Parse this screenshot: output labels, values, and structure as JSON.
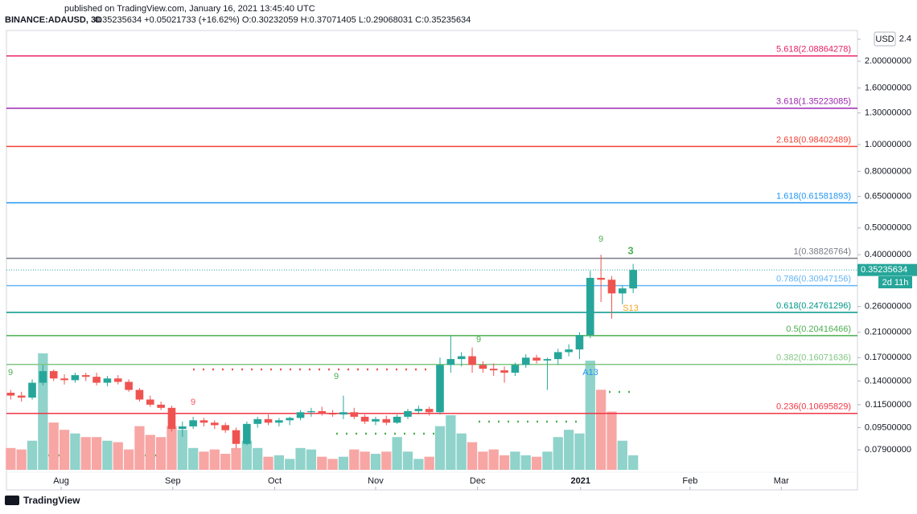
{
  "header": {
    "published": "published on TradingView.com, January 16, 2021 13:45:40 UTC",
    "symbol": "BINANCE:ADAUSD, 3D",
    "quote": "0.35235634 +0.05021733 (+16.62%) O:0.30232059 H:0.37071405 L:0.29068031 C:0.35235634",
    "currency": "USD",
    "countdown": "2d 11h",
    "brand": "TradingView"
  },
  "chart_data": {
    "type": "candlestick",
    "log_scale": true,
    "up_color": "#26a69a",
    "down_color": "#ef5350",
    "volume_up_color": "#8fd3cb",
    "volume_down_color": "#f7a6a4",
    "categories": [
      null,
      null,
      null,
      null,
      null,
      null,
      null,
      null,
      null,
      null,
      null,
      null,
      null,
      null,
      null,
      null,
      null,
      null,
      null,
      null,
      null,
      null,
      null,
      null,
      null,
      null,
      null,
      null,
      null,
      null,
      null,
      null,
      null,
      null,
      null,
      null,
      null,
      null,
      null,
      null,
      null,
      null,
      null,
      null,
      null,
      null,
      null,
      null,
      null,
      null,
      null,
      null,
      null,
      null,
      null,
      null,
      null,
      null,
      null
    ],
    "ohlc": [
      [
        0.127,
        0.13,
        0.12,
        0.124
      ],
      [
        0.124,
        0.128,
        0.118,
        0.122
      ],
      [
        0.122,
        0.142,
        0.12,
        0.138
      ],
      [
        0.138,
        0.16,
        0.135,
        0.152
      ],
      [
        0.152,
        0.154,
        0.14,
        0.143
      ],
      [
        0.143,
        0.148,
        0.136,
        0.141
      ],
      [
        0.141,
        0.15,
        0.138,
        0.147
      ],
      [
        0.147,
        0.15,
        0.14,
        0.145
      ],
      [
        0.145,
        0.15,
        0.135,
        0.138
      ],
      [
        0.138,
        0.146,
        0.134,
        0.143
      ],
      [
        0.143,
        0.147,
        0.136,
        0.139
      ],
      [
        0.139,
        0.142,
        0.128,
        0.13
      ],
      [
        0.13,
        0.132,
        0.118,
        0.12
      ],
      [
        0.12,
        0.124,
        0.113,
        0.115
      ],
      [
        0.115,
        0.118,
        0.11,
        0.112
      ],
      [
        0.112,
        0.114,
        0.092,
        0.094
      ],
      [
        0.094,
        0.1,
        0.088,
        0.096
      ],
      [
        0.096,
        0.104,
        0.094,
        0.101
      ],
      [
        0.101,
        0.103,
        0.096,
        0.099
      ],
      [
        0.099,
        0.101,
        0.094,
        0.097
      ],
      [
        0.097,
        0.099,
        0.091,
        0.093
      ],
      [
        0.093,
        0.095,
        0.08,
        0.083
      ],
      [
        0.083,
        0.1,
        0.082,
        0.098
      ],
      [
        0.098,
        0.104,
        0.095,
        0.102
      ],
      [
        0.102,
        0.106,
        0.097,
        0.099
      ],
      [
        0.099,
        0.103,
        0.096,
        0.101
      ],
      [
        0.101,
        0.104,
        0.097,
        0.103
      ],
      [
        0.103,
        0.11,
        0.101,
        0.108
      ],
      [
        0.108,
        0.112,
        0.104,
        0.109
      ],
      [
        0.109,
        0.113,
        0.105,
        0.107
      ],
      [
        0.107,
        0.11,
        0.104,
        0.106
      ],
      [
        0.106,
        0.124,
        0.102,
        0.108
      ],
      [
        0.108,
        0.112,
        0.102,
        0.104
      ],
      [
        0.104,
        0.106,
        0.098,
        0.1
      ],
      [
        0.1,
        0.104,
        0.097,
        0.102
      ],
      [
        0.102,
        0.105,
        0.097,
        0.099
      ],
      [
        0.099,
        0.106,
        0.098,
        0.104
      ],
      [
        0.104,
        0.111,
        0.102,
        0.109
      ],
      [
        0.109,
        0.114,
        0.106,
        0.111
      ],
      [
        0.111,
        0.113,
        0.105,
        0.108
      ],
      [
        0.108,
        0.17,
        0.106,
        0.16
      ],
      [
        0.16,
        0.205,
        0.15,
        0.168
      ],
      [
        0.168,
        0.178,
        0.158,
        0.172
      ],
      [
        0.172,
        0.185,
        0.15,
        0.16
      ],
      [
        0.16,
        0.165,
        0.15,
        0.155
      ],
      [
        0.155,
        0.162,
        0.146,
        0.153
      ],
      [
        0.153,
        0.158,
        0.138,
        0.15
      ],
      [
        0.15,
        0.163,
        0.146,
        0.16
      ],
      [
        0.16,
        0.175,
        0.156,
        0.17
      ],
      [
        0.17,
        0.174,
        0.162,
        0.166
      ],
      [
        0.166,
        0.17,
        0.13,
        0.168
      ],
      [
        0.168,
        0.183,
        0.16,
        0.178
      ],
      [
        0.178,
        0.19,
        0.172,
        0.182
      ],
      [
        0.182,
        0.21,
        0.168,
        0.205
      ],
      [
        0.205,
        0.35,
        0.2,
        0.33
      ],
      [
        0.33,
        0.4,
        0.27,
        0.325
      ],
      [
        0.325,
        0.335,
        0.235,
        0.29
      ],
      [
        0.29,
        0.31,
        0.265,
        0.30232059
      ],
      [
        0.30232059,
        0.37071405,
        0.29068031,
        0.35235634
      ]
    ],
    "volume": [
      30,
      28,
      40,
      160,
      65,
      55,
      50,
      45,
      45,
      40,
      38,
      28,
      60,
      48,
      45,
      60,
      55,
      30,
      25,
      28,
      22,
      30,
      40,
      30,
      18,
      20,
      15,
      30,
      28,
      18,
      15,
      18,
      28,
      25,
      22,
      25,
      45,
      25,
      15,
      18,
      60,
      75,
      50,
      38,
      25,
      28,
      20,
      25,
      20,
      18,
      25,
      45,
      55,
      50,
      150,
      110,
      80,
      40,
      20
    ],
    "xlim": [
      -0.4,
      78.9
    ],
    "xticks": [
      {
        "value": 4.7,
        "label": "Aug"
      },
      {
        "value": 15.1,
        "label": "Sep"
      },
      {
        "value": 24.6,
        "label": "Oct"
      },
      {
        "value": 34.0,
        "label": "Nov"
      },
      {
        "value": 43.5,
        "label": "Dec"
      },
      {
        "value": 53.1,
        "label": "2021"
      },
      {
        "value": 63.3,
        "label": "Feb"
      },
      {
        "value": 71.8,
        "label": "Mar"
      }
    ],
    "ylim": [
      0.0669,
      2.58
    ],
    "yticks": [
      2.4,
      {
        "value": 2,
        "label": "2.00000000"
      },
      {
        "value": 1.6,
        "label": "1.60000000"
      },
      {
        "value": 1.3,
        "label": "1.30000000"
      },
      {
        "value": 1,
        "label": "1.00000000"
      },
      {
        "value": 0.8,
        "label": "0.80000000"
      },
      {
        "value": 0.65,
        "label": "0.65000000"
      },
      {
        "value": 0.5,
        "label": "0.50000000"
      },
      {
        "value": 0.4,
        "label": "0.40000000"
      },
      {
        "value": 0.26,
        "label": "0.26000000"
      },
      {
        "value": 0.21,
        "label": "0.21000000"
      },
      {
        "value": 0.17,
        "label": "0.17000000"
      },
      {
        "value": 0.14,
        "label": "0.14000000"
      },
      {
        "value": 0.115,
        "label": "0.11500000"
      },
      {
        "value": 0.095,
        "label": "0.09500000"
      },
      {
        "value": 0.079,
        "label": "0.07900000"
      }
    ],
    "levels": [
      {
        "label": "5.618(2.08864278)",
        "value": 2.08864278,
        "color": "#e91e63"
      },
      {
        "label": "3.618(1.35223085)",
        "value": 1.35223085,
        "color": "#9c27b0"
      },
      {
        "label": "2.618(0.98402489)",
        "value": 0.98402489,
        "color": "#f44336"
      },
      {
        "label": "1.618(0.61581893)",
        "value": 0.61581893,
        "color": "#2196f3"
      },
      {
        "label": "1(0.38826764)",
        "value": 0.38826764,
        "color": "#787b86"
      },
      {
        "label": "0.786(0.30947156)",
        "value": 0.30947156,
        "color": "#64b5f6"
      },
      {
        "label": "0.618(0.24761296)",
        "value": 0.24761296,
        "color": "#009688"
      },
      {
        "label": "0.5(0.20416466)",
        "value": 0.20416466,
        "color": "#4caf50"
      },
      {
        "label": "0.382(0.16071636)",
        "value": 0.16071636,
        "color": "#81c784"
      },
      {
        "label": "0.236(0.10695829)",
        "value": 0.10695829,
        "color": "#f23645"
      }
    ],
    "annotations": [
      "9",
      "9",
      "9",
      "9",
      "9",
      "3",
      "A13",
      "S13"
    ]
  }
}
